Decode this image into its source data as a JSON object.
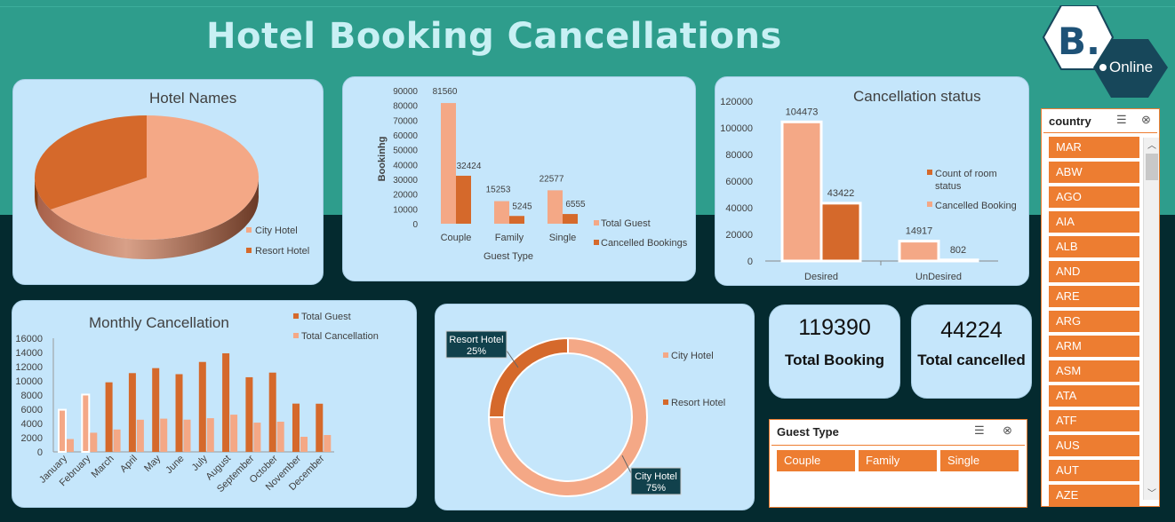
{
  "title": "Hotel Booking Cancellations",
  "logo": {
    "letter": "B.",
    "text": "Online"
  },
  "colors": {
    "light": "#f4a886",
    "dark": "#d5692b",
    "orange": "#ed7d31",
    "card": "#c5e6fb"
  },
  "chart_data": [
    {
      "id": "hotel-names",
      "type": "pie",
      "title": "Hotel Names",
      "labels": [
        "City Hotel",
        "Resort Hotel"
      ],
      "values": [
        66.4,
        33.6
      ]
    },
    {
      "id": "guest-type",
      "type": "bar",
      "title": "",
      "xlabel": "Guest Type",
      "ylabel": "Bookinhg",
      "categories": [
        "Couple",
        "Family",
        "Single"
      ],
      "series": [
        {
          "name": "Total Guest",
          "values": [
            81560,
            15253,
            22577
          ]
        },
        {
          "name": "Cancelled Bookings",
          "values": [
            32424,
            5245,
            6555
          ]
        }
      ],
      "ylim": [
        0,
        90000
      ],
      "yticks": [
        "0",
        "10000",
        "20000",
        "30000",
        "40000",
        "50000",
        "60000",
        "70000",
        "80000",
        "90000"
      ]
    },
    {
      "id": "cancellation-status",
      "type": "bar",
      "title": "Cancellation status",
      "categories": [
        "Desired",
        "UnDesired"
      ],
      "series": [
        {
          "name": "Cancelled Booking",
          "values": [
            104473,
            14917
          ]
        },
        {
          "name": "Count of room status",
          "values": [
            43422,
            802
          ]
        }
      ],
      "ylim": [
        0,
        120000
      ],
      "yticks": [
        "0",
        "20000",
        "40000",
        "60000",
        "80000",
        "100000",
        "120000"
      ]
    },
    {
      "id": "monthly-cancellation",
      "type": "bar",
      "title": "Monthly Cancellation",
      "categories": [
        "January",
        "February",
        "March",
        "April",
        "May",
        "June",
        "July",
        "August",
        "September",
        "October",
        "November",
        "December"
      ],
      "series": [
        {
          "name": "Total Guest",
          "values": [
            5929,
            8068,
            9794,
            11089,
            11791,
            10939,
            12661,
            13877,
            10508,
            11160,
            6794,
            6780
          ]
        },
        {
          "name": "Total Cancellation",
          "values": [
            1807,
            2696,
            3149,
            4524,
            4677,
            4535,
            4742,
            5239,
            4116,
            4246,
            2122,
            2371
          ]
        }
      ],
      "ylim": [
        0,
        16000
      ],
      "yticks": [
        "0",
        "2000",
        "4000",
        "6000",
        "8000",
        "10000",
        "12000",
        "14000",
        "16000"
      ]
    },
    {
      "id": "hotel-donut",
      "type": "pie",
      "title": "",
      "labels": [
        "City Hotel",
        "Resort Hotel"
      ],
      "values": [
        75,
        25
      ],
      "data_labels": [
        "75%",
        "25%"
      ]
    }
  ],
  "kpis": [
    {
      "value": "119390",
      "label": "Total Booking"
    },
    {
      "value": "44224",
      "label": "Total cancelled"
    }
  ],
  "guest_slicer": {
    "title": "Guest Type",
    "items": [
      "Couple",
      "Family",
      "Single"
    ]
  },
  "country_slicer": {
    "title": "country",
    "items": [
      "MAR",
      "ABW",
      "AGO",
      "AIA",
      "ALB",
      "AND",
      "ARE",
      "ARG",
      "ARM",
      "ASM",
      "ATA",
      "ATF",
      "AUS",
      "AUT",
      "AZE"
    ]
  }
}
